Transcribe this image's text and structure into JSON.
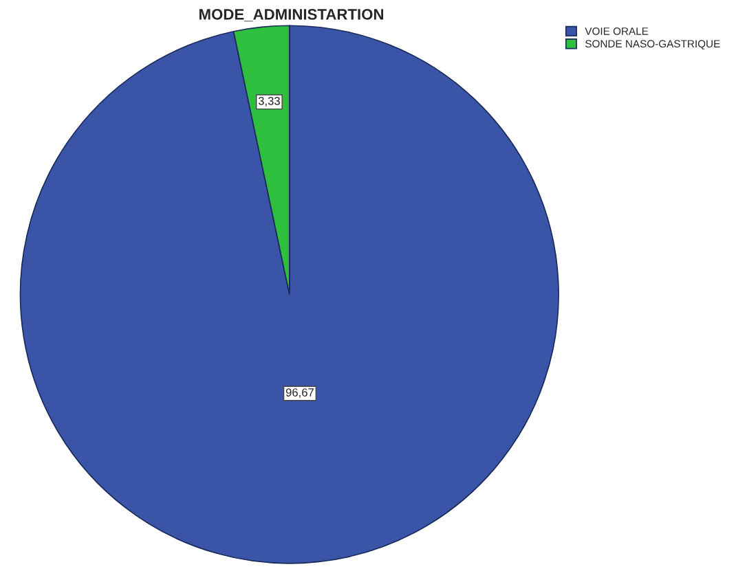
{
  "chart_data": {
    "type": "pie",
    "title": "MODE_ADMINISTARTION",
    "categories": [
      "VOIE ORALE",
      "SONDE NASO-GASTRIQUE"
    ],
    "values": [
      96.67,
      3.33
    ],
    "colors": [
      "#3a55a8",
      "#2fbf3f"
    ],
    "value_labels": [
      "96,67",
      "3,33"
    ],
    "legend": "top right"
  }
}
